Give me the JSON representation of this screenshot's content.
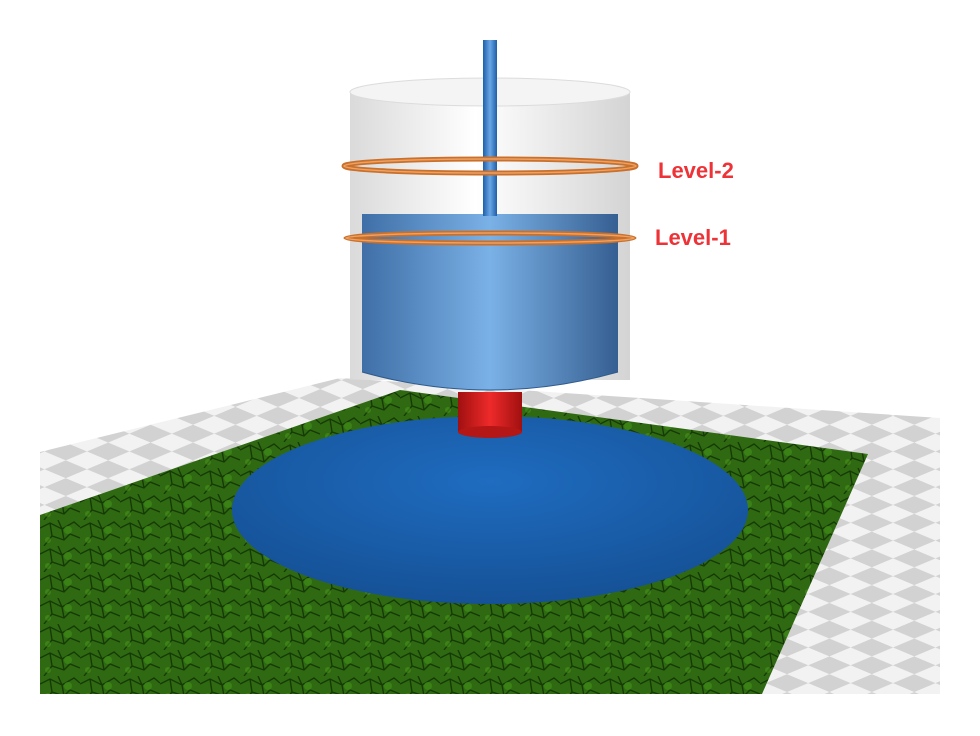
{
  "labels": {
    "level_2": "Level-2",
    "level_1": "Level-1"
  },
  "colors": {
    "label": "#ee3338",
    "tank_shell": "#e8e8e8",
    "fluid": "#5a94cf",
    "rod": "#3a7cc4",
    "ring": "#c8702c",
    "outlet": "#cc1a1a",
    "pool": "#1a5fa8",
    "grass": "#2f6a12",
    "floor_light": "#f2f2f2",
    "floor_dark": "#d0d0d0"
  }
}
